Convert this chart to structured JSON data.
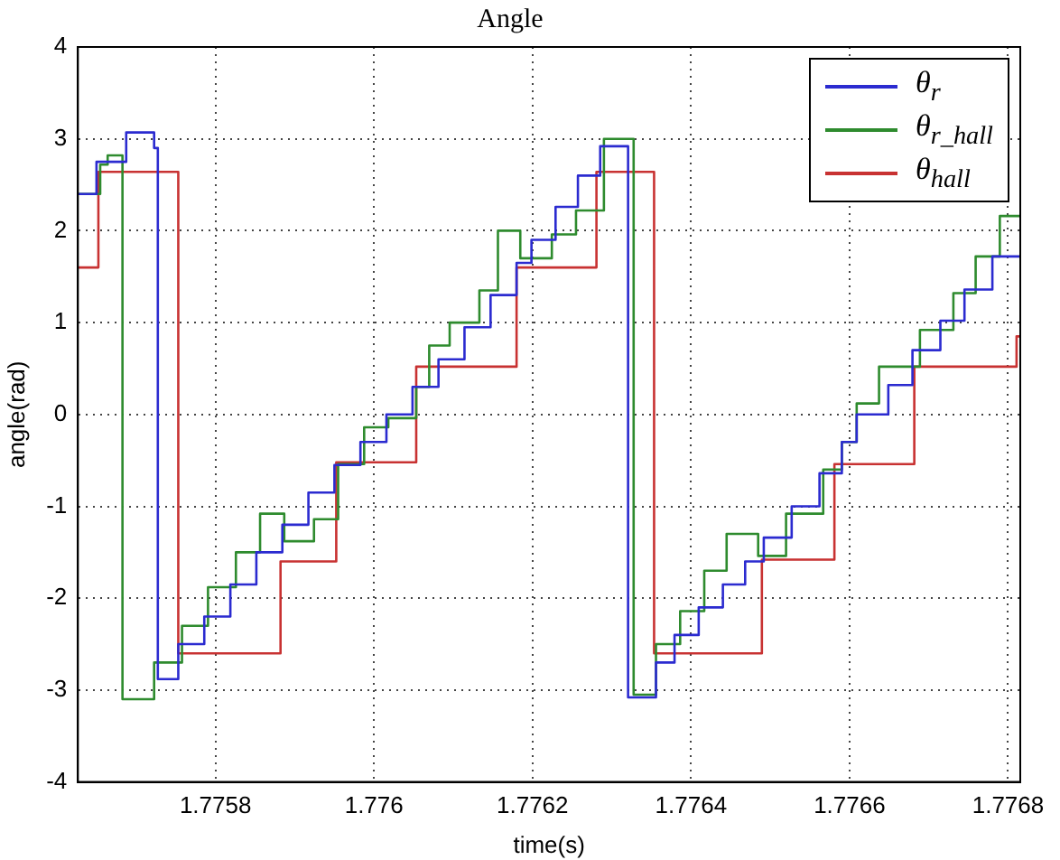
{
  "chart_data": {
    "type": "step",
    "title": "Angle",
    "xlabel": "time(s)",
    "ylabel": "angle(rad)",
    "xlim": [
      1.7756265,
      1.7768154
    ],
    "xticks": [
      1.7758,
      1.776,
      1.7762,
      1.7764,
      1.7766,
      1.7768
    ],
    "ylim": [
      -4,
      4
    ],
    "yticks": [
      -4,
      -3,
      -2,
      -1,
      0,
      1,
      2,
      3,
      4
    ],
    "grid": true,
    "legend": "top right",
    "marker": "none",
    "line_style": "solid",
    "series": [
      {
        "name": "θ$_{r}$",
        "color": "#2b2bd0",
        "x": [
          1.7756265,
          1.7756499,
          1.7756874,
          1.7757226,
          1.7757273,
          1.7757531,
          1.7757859,
          1.7758188,
          1.7758516,
          1.7758844,
          1.7759173,
          1.7759501,
          1.7759829,
          1.7760157,
          1.7760486,
          1.7760814,
          1.7761142,
          1.7761471,
          1.7761799,
          1.7761987,
          1.7762291,
          1.7762573,
          1.7762854,
          1.7763206,
          1.7763558,
          1.7763792,
          1.7764097,
          1.7764402,
          1.7764683,
          1.7764918,
          1.776527,
          1.7765621,
          1.7765903,
          1.776609,
          1.7766489,
          1.7766794,
          1.7767146,
          1.776745,
          1.7767802,
          1.7768154
        ],
        "values": [
          2.4,
          2.75,
          3.07,
          2.9,
          -2.88,
          -2.5,
          -2.2,
          -1.85,
          -1.5,
          -1.2,
          -0.85,
          -0.55,
          -0.3,
          0.0,
          0.3,
          0.6,
          0.95,
          1.3,
          1.65,
          1.9,
          2.26,
          2.6,
          2.92,
          -3.08,
          -2.7,
          -2.4,
          -2.1,
          -1.85,
          -1.6,
          -1.34,
          -1.0,
          -0.64,
          -0.3,
          0.0,
          0.32,
          0.7,
          1.02,
          1.36,
          1.72,
          1.72
        ]
      },
      {
        "name": "θ$_{r_hall}$",
        "color": "#2e8b2e",
        "x": [
          1.7756265,
          1.7756546,
          1.775664,
          1.7756827,
          1.7757226,
          1.7757578,
          1.7757906,
          1.7758258,
          1.7758563,
          1.7758868,
          1.7759243,
          1.7759548,
          1.7759876,
          1.7760181,
          1.7760533,
          1.7760697,
          1.7760955,
          1.776133,
          1.7761564,
          1.7761846,
          1.7762244,
          1.7762549,
          1.7762901,
          1.7763276,
          1.7763558,
          1.7763863,
          1.7764167,
          1.7764449,
          1.7764847,
          1.7765199,
          1.7765668,
          1.7765903,
          1.776609,
          1.7766372,
          1.7766888,
          1.776731,
          1.7767591,
          1.7767896,
          1.7768154
        ],
        "values": [
          2.4,
          2.72,
          2.82,
          -3.1,
          -2.7,
          -2.3,
          -1.88,
          -1.5,
          -1.08,
          -1.38,
          -1.14,
          -0.54,
          -0.14,
          -0.04,
          0.3,
          0.75,
          1.0,
          1.35,
          2.0,
          1.7,
          1.96,
          2.22,
          3.0,
          -3.05,
          -2.5,
          -2.14,
          -1.7,
          -1.3,
          -1.54,
          -1.08,
          -0.6,
          -0.3,
          0.12,
          0.52,
          0.92,
          1.32,
          1.72,
          2.16,
          2.16
        ]
      },
      {
        "name": "θ$_{hall}$",
        "color": "#c83232",
        "x": [
          1.7756265,
          1.7756523,
          1.7757531,
          1.7758821,
          1.7759524,
          1.7760533,
          1.7761799,
          1.7762807,
          1.7763534,
          1.7764894,
          1.7765809,
          1.7766817,
          1.7768107,
          1.7768154
        ],
        "values": [
          1.6,
          2.64,
          -2.6,
          -1.6,
          -0.52,
          0.52,
          1.6,
          2.64,
          -2.6,
          -1.58,
          -0.54,
          0.52,
          0.85,
          0.85
        ]
      }
    ]
  }
}
